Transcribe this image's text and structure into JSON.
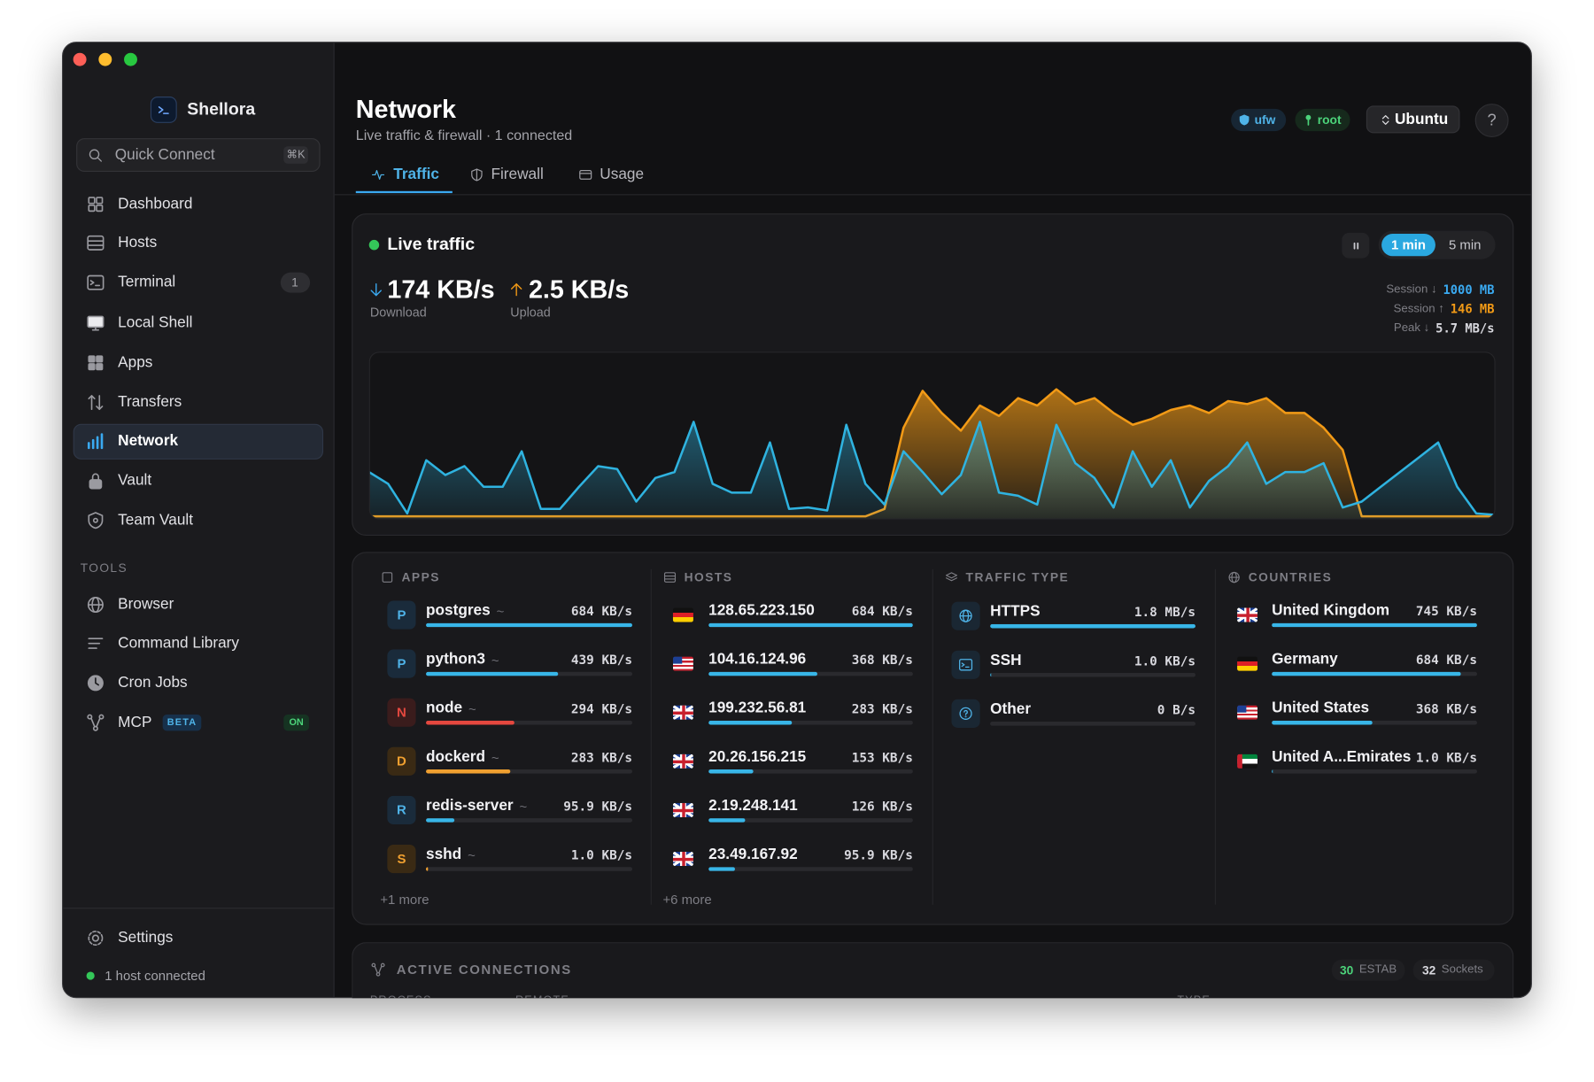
{
  "app": {
    "name": "Shellora",
    "quick_connect": "Quick Connect",
    "shortcut": "⌘K"
  },
  "sidebar": {
    "nav": [
      {
        "label": "Dashboard"
      },
      {
        "label": "Hosts"
      },
      {
        "label": "Terminal",
        "badge": "1"
      },
      {
        "label": "Local Shell"
      },
      {
        "label": "Apps"
      },
      {
        "label": "Transfers"
      },
      {
        "label": "Network"
      },
      {
        "label": "Vault"
      },
      {
        "label": "Team Vault"
      }
    ],
    "tools_heading": "TOOLS",
    "tools": [
      {
        "label": "Browser"
      },
      {
        "label": "Command Library"
      },
      {
        "label": "Cron Jobs"
      },
      {
        "label": "MCP",
        "tag": "BETA",
        "status": "ON"
      }
    ],
    "settings": "Settings",
    "status": "1 host connected"
  },
  "header": {
    "title": "Network",
    "subtitle": "Live traffic & firewall · 1 connected",
    "badges": [
      "ufw",
      "root"
    ],
    "host_select": "Ubuntu",
    "help": "?"
  },
  "tabs": [
    "Traffic",
    "Firewall",
    "Usage"
  ],
  "live": {
    "title": "Live traffic",
    "ranges": [
      "1 min",
      "5 min"
    ],
    "download": "174 KB/s",
    "download_label": "Download",
    "upload": "2.5 KB/s",
    "upload_label": "Upload",
    "stats": [
      {
        "label": "Session ↓",
        "value": "1000 MB"
      },
      {
        "label": "Session ↑",
        "value": "146 MB"
      },
      {
        "label": "Peak ↓",
        "value": "5.7 MB/s"
      }
    ]
  },
  "chart_data": {
    "type": "area",
    "series": [
      {
        "color": "#f29a16",
        "values": [
          0,
          0,
          0,
          0,
          0,
          0,
          0,
          0,
          0,
          0,
          0,
          0,
          0,
          0,
          0,
          0,
          0,
          0,
          0,
          0,
          0,
          0,
          0,
          0,
          0,
          0,
          0,
          5,
          60,
          85,
          70,
          58,
          75,
          68,
          80,
          75,
          86,
          76,
          80,
          70,
          62,
          66,
          72,
          75,
          70,
          78,
          76,
          80,
          70,
          70,
          60,
          45,
          0,
          0,
          0,
          0,
          0,
          0,
          0,
          0
        ]
      },
      {
        "color": "#2fb3e0",
        "values": [
          30,
          22,
          2,
          38,
          28,
          34,
          20,
          20,
          44,
          5,
          5,
          20,
          34,
          32,
          10,
          26,
          30,
          64,
          22,
          16,
          16,
          50,
          5,
          6,
          4,
          62,
          22,
          8,
          44,
          30,
          15,
          28,
          64,
          16,
          14,
          8,
          62,
          36,
          26,
          6,
          44,
          20,
          38,
          6,
          24,
          34,
          50,
          22,
          30,
          30,
          36,
          6,
          10,
          20,
          30,
          40,
          50,
          20,
          2,
          1
        ]
      }
    ]
  },
  "breakdown": {
    "apps": {
      "heading": "APPS",
      "more": "+1 more",
      "rows": [
        {
          "icon": "P",
          "name": "postgres",
          "tag": "~",
          "rate": "684 KB/s"
        },
        {
          "icon": "P",
          "name": "python3",
          "tag": "~",
          "rate": "439 KB/s"
        },
        {
          "icon": "N",
          "name": "node",
          "tag": "~",
          "rate": "294 KB/s"
        },
        {
          "icon": "D",
          "name": "dockerd",
          "tag": "~",
          "rate": "283 KB/s"
        },
        {
          "icon": "R",
          "name": "redis-server",
          "tag": "~",
          "rate": "95.9 KB/s"
        },
        {
          "icon": "S",
          "name": "sshd",
          "tag": "~",
          "rate": "1.0 KB/s"
        }
      ]
    },
    "hosts": {
      "heading": "HOSTS",
      "more": "+6 more",
      "rows": [
        {
          "name": "128.65.223.150",
          "rate": "684 KB/s"
        },
        {
          "name": "104.16.124.96",
          "rate": "368 KB/s"
        },
        {
          "name": "199.232.56.81",
          "rate": "283 KB/s"
        },
        {
          "name": "20.26.156.215",
          "rate": "153 KB/s"
        },
        {
          "name": "2.19.248.141",
          "rate": "126 KB/s"
        },
        {
          "name": "23.49.167.92",
          "rate": "95.9 KB/s"
        }
      ]
    },
    "traffic_type": {
      "heading": "TRAFFIC TYPE",
      "rows": [
        {
          "name": "HTTPS",
          "rate": "1.8 MB/s"
        },
        {
          "name": "SSH",
          "rate": "1.0 KB/s"
        },
        {
          "name": "Other",
          "rate": "0 B/s"
        }
      ]
    },
    "countries": {
      "heading": "COUNTRIES",
      "rows": [
        {
          "name": "United Kingdom",
          "rate": "745 KB/s"
        },
        {
          "name": "Germany",
          "rate": "684 KB/s"
        },
        {
          "name": "United States",
          "rate": "368 KB/s"
        },
        {
          "name": "United A...Emirates",
          "rate": "1.0 KB/s"
        }
      ]
    }
  },
  "connections": {
    "heading": "ACTIVE CONNECTIONS",
    "estab_count": "30",
    "estab_label": "ESTAB",
    "sockets_count": "32",
    "sockets_label": "Sockets",
    "columns": [
      "PROCESS",
      "REMOTE",
      "TYPE"
    ]
  }
}
